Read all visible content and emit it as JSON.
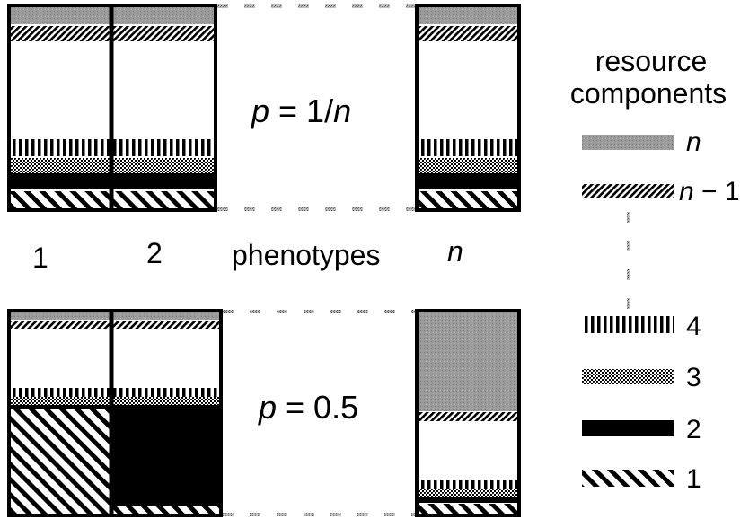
{
  "top_row": {
    "equation_var": "p",
    "equation_rest": " = 1/",
    "equation_n": "n"
  },
  "bottom_row": {
    "equation_var": "p",
    "equation_rest": " = 0.5"
  },
  "phenotype_labels": {
    "one": "1",
    "two": "2",
    "middle": "phenotypes",
    "n": "n"
  },
  "legend": {
    "title_line1": "resource",
    "title_line2": "components",
    "items": [
      {
        "label_prefix": "",
        "label_italic": "n",
        "label_suffix": "",
        "pattern": "gray"
      },
      {
        "label_prefix": "",
        "label_italic": "n",
        "label_suffix": " − 1",
        "pattern": "diag-dense"
      },
      {
        "label_prefix": "4",
        "label_italic": "",
        "label_suffix": "",
        "pattern": "vertical-bars"
      },
      {
        "label_prefix": "3",
        "label_italic": "",
        "label_suffix": "",
        "pattern": "crosshatch"
      },
      {
        "label_prefix": "2",
        "label_italic": "",
        "label_suffix": "",
        "pattern": "black"
      },
      {
        "label_prefix": "1",
        "label_italic": "",
        "label_suffix": "",
        "pattern": "diag-wide"
      }
    ]
  }
}
